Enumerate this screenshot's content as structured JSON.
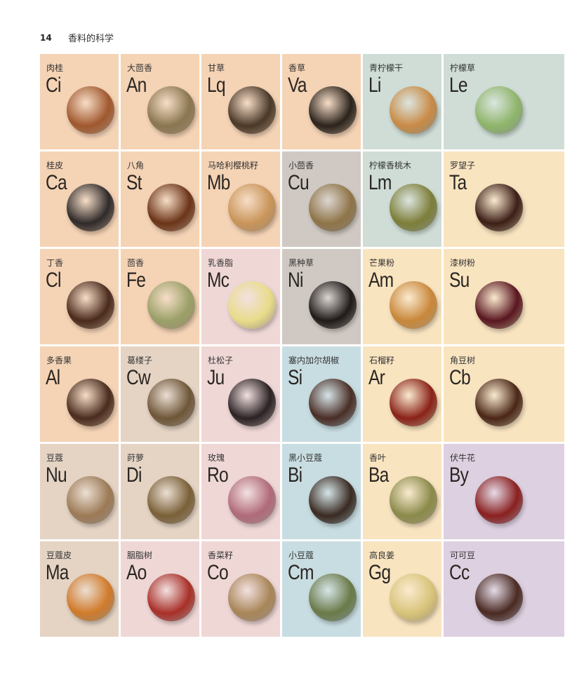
{
  "header": {
    "page_number": "14",
    "title": "香料的科学"
  },
  "colors": {
    "peach": "#f5d3b5",
    "sage": "#cfddd6",
    "yellow": "#f9e4c0",
    "grey": "#d0c9c3",
    "pink": "#efd7d6",
    "blue": "#c8dde1",
    "tan": "#e5d4c4",
    "lavender": "#ddd0e0"
  },
  "cells": [
    {
      "name": "肉桂",
      "symbol": "Ci",
      "bg": "#f5d3b5",
      "spice": "#a0582e"
    },
    {
      "name": "大茴香",
      "symbol": "An",
      "bg": "#f5d3b5",
      "spice": "#8a7650"
    },
    {
      "name": "甘草",
      "symbol": "Lq",
      "bg": "#f5d3b5",
      "spice": "#4a3828"
    },
    {
      "name": "香草",
      "symbol": "Va",
      "bg": "#f5d3b5",
      "spice": "#2b231c"
    },
    {
      "name": "青柠檬干",
      "symbol": "Li",
      "bg": "#cfddd6",
      "spice": "#c98a45"
    },
    {
      "name": "柠檬草",
      "symbol": "Le",
      "bg": "#cfddd6",
      "spice": "#8fb56a"
    },
    {
      "name": "桂皮",
      "symbol": "Ca",
      "bg": "#f5d3b5",
      "spice": "#2f2a2a"
    },
    {
      "name": "八角",
      "symbol": "St",
      "bg": "#f5d3b5",
      "spice": "#6b3418"
    },
    {
      "name": "马哈利樱桃籽",
      "symbol": "Mb",
      "bg": "#f5d3b5",
      "spice": "#c9955a"
    },
    {
      "name": "小茴香",
      "symbol": "Cu",
      "bg": "#d0c9c3",
      "spice": "#8f7448"
    },
    {
      "name": "柠檬香桃木",
      "symbol": "Lm",
      "bg": "#cfddd6",
      "spice": "#7d7e38"
    },
    {
      "name": "罗望子",
      "symbol": "Ta",
      "bg": "#f9e4c0",
      "spice": "#3c1e16"
    },
    {
      "name": "丁香",
      "symbol": "Cl",
      "bg": "#f5d3b5",
      "spice": "#4a2a1c"
    },
    {
      "name": "茴香",
      "symbol": "Fe",
      "bg": "#f5d3b5",
      "spice": "#9aa068"
    },
    {
      "name": "乳香脂",
      "symbol": "Mc",
      "bg": "#efd7d6",
      "spice": "#e8dc8a"
    },
    {
      "name": "黑种草",
      "symbol": "Ni",
      "bg": "#d0c9c3",
      "spice": "#1f1a18"
    },
    {
      "name": "芒果粉",
      "symbol": "Am",
      "bg": "#f9e4c0",
      "spice": "#c9873a"
    },
    {
      "name": "漆树粉",
      "symbol": "Su",
      "bg": "#f9e4c0",
      "spice": "#5a1620"
    },
    {
      "name": "多香果",
      "symbol": "Al",
      "bg": "#f5d3b5",
      "spice": "#4a2c1e"
    },
    {
      "name": "葛缕子",
      "symbol": "Cw",
      "bg": "#e5d4c4",
      "spice": "#6e5638"
    },
    {
      "name": "杜松子",
      "symbol": "Ju",
      "bg": "#efd7d6",
      "spice": "#2b2224"
    },
    {
      "name": "塞内加尔胡椒",
      "symbol": "Si",
      "bg": "#c8dde1",
      "spice": "#4a2e26"
    },
    {
      "name": "石榴籽",
      "symbol": "Ar",
      "bg": "#f9e4c0",
      "spice": "#8a2218"
    },
    {
      "name": "角豆树",
      "symbol": "Cb",
      "bg": "#f9e4c0",
      "spice": "#4a2616"
    },
    {
      "name": "豆蔻",
      "symbol": "Nu",
      "bg": "#e5d4c4",
      "spice": "#9c7a56"
    },
    {
      "name": "莳萝",
      "symbol": "Di",
      "bg": "#e5d4c4",
      "spice": "#7a6038"
    },
    {
      "name": "玫瑰",
      "symbol": "Ro",
      "bg": "#efd7d6",
      "spice": "#b06a7a"
    },
    {
      "name": "黑小豆蔻",
      "symbol": "Bi",
      "bg": "#c8dde1",
      "spice": "#3a2a22"
    },
    {
      "name": "香叶",
      "symbol": "Ba",
      "bg": "#f9e4c0",
      "spice": "#8a8a4a"
    },
    {
      "name": "伏牛花",
      "symbol": "By",
      "bg": "#ddd0e0",
      "spice": "#8a2020"
    },
    {
      "name": "豆蔻皮",
      "symbol": "Ma",
      "bg": "#e5d4c4",
      "spice": "#d07a2a"
    },
    {
      "name": "胭脂树",
      "symbol": "Ao",
      "bg": "#efd7d6",
      "spice": "#a83028"
    },
    {
      "name": "香菜籽",
      "symbol": "Co",
      "bg": "#efd7d6",
      "spice": "#a88658"
    },
    {
      "name": "小豆蔻",
      "symbol": "Cm",
      "bg": "#c8dde1",
      "spice": "#6a7a48"
    },
    {
      "name": "高良姜",
      "symbol": "Gg",
      "bg": "#f9e4c0",
      "spice": "#d8c47a"
    },
    {
      "name": "可可豆",
      "symbol": "Cc",
      "bg": "#ddd0e0",
      "spice": "#4a2a22"
    }
  ]
}
